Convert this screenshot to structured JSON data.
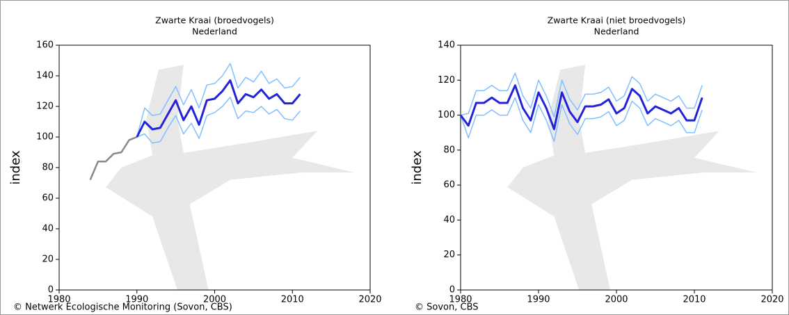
{
  "chart_data": [
    {
      "type": "line",
      "title": "Zwarte Kraai (broedvogels)",
      "subtitle": "Nederland",
      "y_label": "index",
      "x": [
        1984,
        1985,
        1986,
        1987,
        1988,
        1989,
        1990,
        1991,
        1992,
        1993,
        1994,
        1995,
        1996,
        1997,
        1998,
        1999,
        2000,
        2001,
        2002,
        2003,
        2004,
        2005,
        2006,
        2007,
        2008,
        2009,
        2010,
        2011
      ],
      "series": [
        {
          "color": "#888888",
          "values": [
            72,
            84,
            84,
            89,
            90,
            98,
            100,
            null,
            null,
            null,
            null,
            null,
            null,
            null,
            null,
            null,
            null,
            null,
            null,
            null,
            null,
            null,
            null,
            null,
            null,
            null,
            null,
            null
          ]
        },
        {
          "color": "#7fbfff",
          "values": [
            null,
            null,
            null,
            null,
            null,
            null,
            100,
            119,
            114,
            115,
            124,
            133,
            121,
            131,
            119,
            134,
            135,
            140,
            148,
            132,
            139,
            136,
            143,
            135,
            138,
            132,
            133,
            139
          ]
        },
        {
          "color": "#7fbfff",
          "values": [
            null,
            null,
            null,
            null,
            null,
            null,
            100,
            102,
            96,
            97,
            106,
            114,
            102,
            109,
            99,
            114,
            116,
            120,
            126,
            112,
            117,
            116,
            120,
            115,
            118,
            112,
            111,
            117
          ]
        },
        {
          "color": "#2222dd",
          "values": [
            null,
            null,
            null,
            null,
            null,
            null,
            100,
            110,
            105,
            106,
            115,
            124,
            111,
            120,
            108,
            124,
            125,
            130,
            137,
            122,
            128,
            126,
            131,
            125,
            128,
            122,
            122,
            128
          ]
        }
      ],
      "xlim": [
        1980,
        2020
      ],
      "xticks": [
        1980,
        1990,
        2000,
        2010,
        2020
      ],
      "ylim": [
        0,
        160
      ],
      "yticks": [
        0,
        20,
        40,
        60,
        80,
        100,
        120,
        140,
        160
      ],
      "caption": "©  Netwerk Ecologische Monitoring (Sovon, CBS)"
    },
    {
      "type": "line",
      "title": "Zwarte Kraai (niet broedvogels)",
      "subtitle": "Nederland",
      "y_label": "index",
      "x": [
        1980,
        1981,
        1982,
        1983,
        1984,
        1985,
        1986,
        1987,
        1988,
        1989,
        1990,
        1991,
        1992,
        1993,
        1994,
        1995,
        1996,
        1997,
        1998,
        1999,
        2000,
        2001,
        2002,
        2003,
        2004,
        2005,
        2006,
        2007,
        2008,
        2009,
        2010,
        2011
      ],
      "series": [
        {
          "color": "#7fbfff",
          "values": [
            100,
            101,
            114,
            114,
            117,
            114,
            114,
            124,
            111,
            104,
            120,
            111,
            99,
            120,
            109,
            103,
            112,
            112,
            113,
            116,
            108,
            111,
            122,
            118,
            108,
            112,
            110,
            108,
            111,
            104,
            104,
            117
          ]
        },
        {
          "color": "#7fbfff",
          "values": [
            100,
            87,
            100,
            100,
            103,
            100,
            100,
            110,
            97,
            90,
            106,
            97,
            85,
            106,
            95,
            89,
            98,
            98,
            99,
            102,
            94,
            97,
            108,
            104,
            94,
            98,
            96,
            94,
            97,
            90,
            90,
            103
          ]
        },
        {
          "color": "#2222dd",
          "values": [
            100,
            94,
            107,
            107,
            110,
            107,
            107,
            117,
            104,
            97,
            113,
            104,
            92,
            113,
            102,
            96,
            105,
            105,
            106,
            109,
            101,
            104,
            115,
            111,
            101,
            105,
            103,
            101,
            104,
            97,
            97,
            110
          ]
        }
      ],
      "xlim": [
        1980,
        2020
      ],
      "xticks": [
        1980,
        1990,
        2000,
        2010,
        2020
      ],
      "ylim": [
        0,
        140
      ],
      "yticks": [
        0,
        20,
        40,
        60,
        80,
        100,
        120,
        140
      ],
      "caption": "©  Sovon, CBS"
    }
  ]
}
